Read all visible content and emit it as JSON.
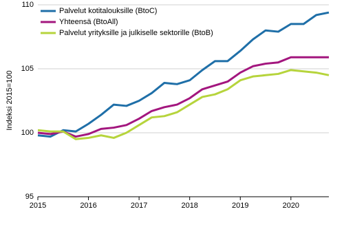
{
  "chart_data": {
    "type": "line",
    "y_label": "Indeksi 2015=100",
    "categories": [
      "2015",
      null,
      null,
      null,
      "2016",
      null,
      null,
      null,
      "2017",
      null,
      null,
      null,
      "2018",
      null,
      null,
      null,
      "2019",
      null,
      null,
      null,
      "2020",
      null,
      null,
      null
    ],
    "series": [
      {
        "name": "Palvelut kotitalouksille (BtoC)",
        "color": "#1f6fa8",
        "values": [
          99.8,
          99.7,
          100.2,
          100.1,
          100.7,
          101.4,
          102.2,
          102.1,
          102.5,
          103.1,
          103.9,
          103.8,
          104.1,
          104.9,
          105.6,
          105.6,
          106.4,
          107.3,
          108.0,
          107.9,
          108.5,
          108.5,
          109.2,
          109.4
        ]
      },
      {
        "name": "Yhteensä (BtoAll)",
        "color": "#a3167e",
        "values": [
          100.0,
          99.9,
          100.1,
          99.7,
          99.9,
          100.3,
          100.4,
          100.6,
          101.1,
          101.7,
          102.0,
          102.2,
          102.7,
          103.4,
          103.7,
          104.0,
          104.7,
          105.2,
          105.4,
          105.5,
          105.9,
          105.9,
          105.9,
          105.9
        ]
      },
      {
        "name": "Palvelut yrityksille ja julkiselle sektorille (BtoB)",
        "color": "#b6d43c",
        "values": [
          100.2,
          100.1,
          100.1,
          99.5,
          99.6,
          99.8,
          99.6,
          100.0,
          100.6,
          101.2,
          101.3,
          101.6,
          102.2,
          102.8,
          103.0,
          103.4,
          104.1,
          104.4,
          104.5,
          104.6,
          104.9,
          104.8,
          104.7,
          104.5
        ]
      }
    ],
    "ylim": [
      95,
      110
    ],
    "yticks": [
      95,
      100,
      105,
      110
    ],
    "grid": true,
    "legend": "top-left"
  }
}
